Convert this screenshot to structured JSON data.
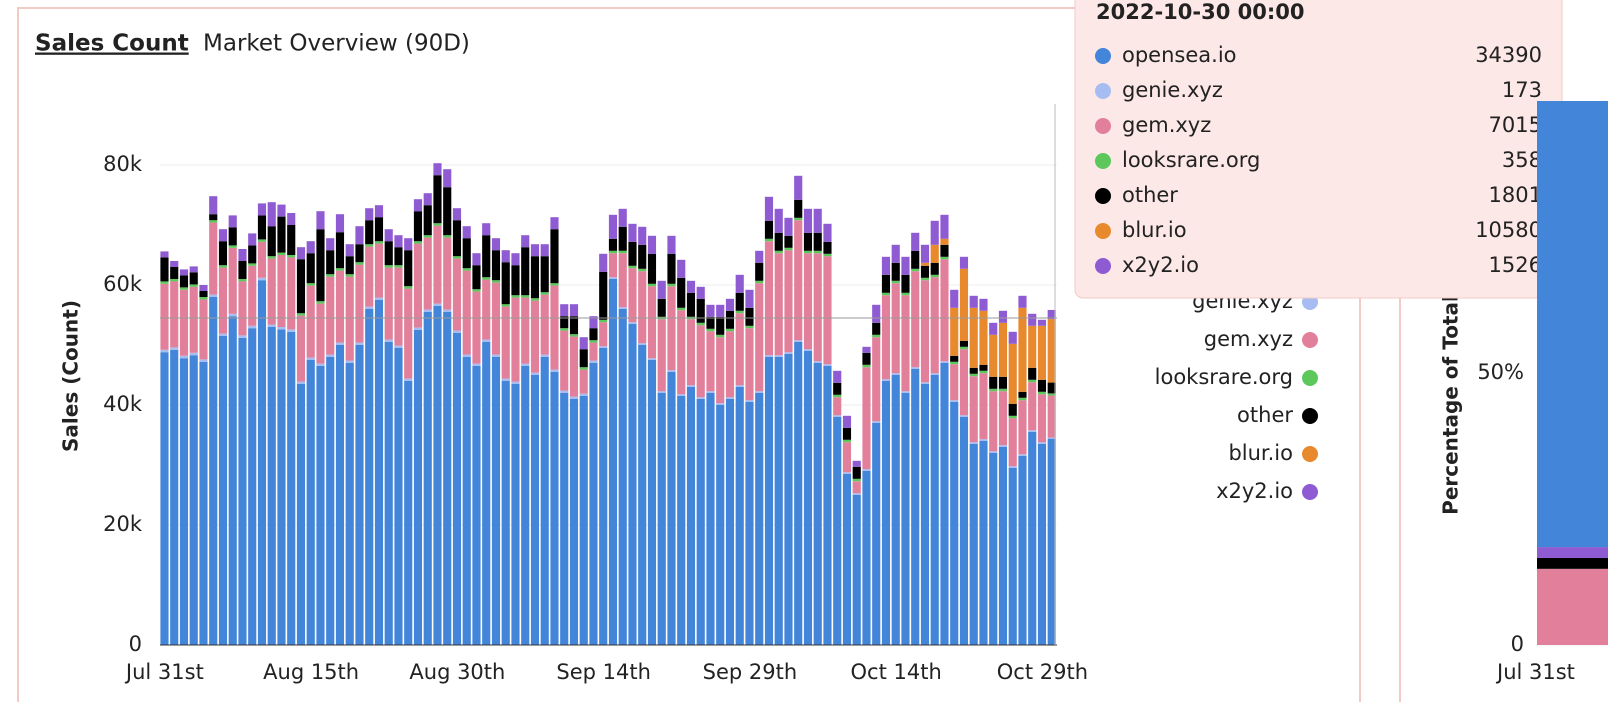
{
  "chart_data": [
    {
      "type": "bar",
      "stacked": true,
      "title": "Sales Count",
      "subtitle": "Market Overview (90D)",
      "y_label": "Sales (Count)",
      "categories": [
        "Jul 31st",
        null,
        null,
        null,
        null,
        null,
        null,
        null,
        null,
        null,
        null,
        null,
        null,
        null,
        null,
        "Aug 15th",
        null,
        null,
        null,
        null,
        null,
        null,
        null,
        null,
        null,
        null,
        null,
        null,
        null,
        null,
        "Aug 30th",
        null,
        null,
        null,
        null,
        null,
        null,
        null,
        null,
        null,
        null,
        null,
        null,
        null,
        null,
        "Sep 14th",
        null,
        null,
        null,
        null,
        null,
        null,
        null,
        null,
        null,
        null,
        null,
        null,
        null,
        null,
        "Sep 29th",
        null,
        null,
        null,
        null,
        null,
        null,
        null,
        null,
        null,
        null,
        null,
        null,
        null,
        null,
        "Oct 14th",
        null,
        null,
        null,
        null,
        null,
        null,
        null,
        null,
        null,
        null,
        null,
        null,
        null,
        null,
        "Oct 29th",
        null
      ],
      "ylim": [
        0,
        91000
      ],
      "yticks": [
        0,
        {
          "value": 20000,
          "label": "20k"
        },
        {
          "value": 40000,
          "label": "40k"
        },
        {
          "value": 60000,
          "label": "60k"
        },
        {
          "value": 80000,
          "label": "80k"
        }
      ],
      "grid": true,
      "tooltip_title": "2022-10-30 00:00",
      "series": [
        {
          "name": "opensea.io",
          "color": "#4285d9",
          "values": [
            48800,
            49200,
            47800,
            48300,
            47200,
            58000,
            51500,
            54800,
            51200,
            52800,
            60800,
            53000,
            52600,
            52200,
            43500,
            47500,
            46500,
            48000,
            50000,
            47000,
            50000,
            56000,
            57500,
            50500,
            49500,
            44000,
            52500,
            55500,
            56500,
            55500,
            52000,
            48000,
            46500,
            50500,
            48000,
            44000,
            43500,
            46500,
            45000,
            48000,
            45500,
            42000,
            41000,
            41500,
            47000,
            49500,
            61000,
            56000,
            53500,
            50000,
            47500,
            42000,
            45500,
            41500,
            43000,
            41000,
            42000,
            40000,
            41000,
            43000,
            40500,
            42000,
            48000,
            48000,
            48500,
            50500,
            49000,
            47000,
            46500,
            38000,
            28500,
            25000,
            29000,
            37000,
            44000,
            45000,
            42000,
            46000,
            43500,
            45000,
            47000,
            40500,
            38000,
            33500,
            34000,
            32000,
            33000,
            29500,
            31500,
            35500,
            33500,
            34390
          ]
        },
        {
          "name": "genie.xyz",
          "color": "#a7bdf2",
          "values": [
            400,
            400,
            400,
            400,
            400,
            400,
            400,
            400,
            400,
            400,
            400,
            400,
            400,
            400,
            400,
            400,
            400,
            400,
            400,
            400,
            400,
            400,
            400,
            400,
            400,
            400,
            400,
            400,
            400,
            400,
            400,
            400,
            400,
            400,
            400,
            400,
            400,
            400,
            400,
            400,
            400,
            400,
            400,
            400,
            400,
            300,
            300,
            300,
            300,
            300,
            300,
            300,
            300,
            300,
            300,
            300,
            300,
            300,
            300,
            300,
            300,
            300,
            300,
            300,
            300,
            300,
            300,
            300,
            300,
            300,
            300,
            300,
            300,
            300,
            300,
            300,
            300,
            300,
            300,
            300,
            300,
            300,
            300,
            300,
            300,
            300,
            300,
            300,
            300,
            300,
            300,
            173
          ]
        },
        {
          "name": "gem.xyz",
          "color": "#e2809c",
          "values": [
            11000,
            11000,
            11000,
            11000,
            10000,
            12000,
            11000,
            11000,
            9000,
            10000,
            6000,
            11000,
            12000,
            12000,
            11000,
            12000,
            10000,
            13000,
            12000,
            14000,
            13000,
            10000,
            9000,
            12000,
            13000,
            15000,
            14000,
            12000,
            13000,
            12000,
            12000,
            14000,
            12000,
            10000,
            12000,
            12000,
            14000,
            11000,
            12000,
            10000,
            14000,
            10000,
            10000,
            4000,
            3000,
            4000,
            4000,
            9000,
            9000,
            12000,
            12000,
            12000,
            14000,
            14000,
            11000,
            12000,
            10000,
            11000,
            11000,
            12000,
            12000,
            18000,
            19000,
            17000,
            17000,
            20000,
            16000,
            18000,
            18000,
            3000,
            5000,
            2000,
            17000,
            14000,
            14000,
            15000,
            16000,
            16000,
            17000,
            16000,
            17000,
            6000,
            11000,
            11000,
            11000,
            10000,
            9000,
            8000,
            9000,
            8000,
            8000,
            7015
          ]
        },
        {
          "name": "looksrare.org",
          "color": "#5cc85c",
          "values": [
            400,
            400,
            400,
            400,
            400,
            400,
            400,
            400,
            400,
            400,
            400,
            400,
            400,
            400,
            400,
            400,
            400,
            400,
            400,
            400,
            400,
            400,
            400,
            400,
            400,
            400,
            400,
            400,
            400,
            400,
            400,
            400,
            400,
            400,
            400,
            400,
            400,
            400,
            400,
            400,
            400,
            400,
            400,
            400,
            400,
            400,
            400,
            400,
            400,
            400,
            400,
            400,
            400,
            400,
            400,
            400,
            400,
            400,
            400,
            400,
            400,
            400,
            400,
            400,
            400,
            400,
            400,
            400,
            400,
            400,
            400,
            400,
            400,
            400,
            400,
            400,
            400,
            400,
            400,
            400,
            400,
            400,
            400,
            400,
            400,
            400,
            400,
            400,
            400,
            400,
            400,
            358
          ]
        },
        {
          "name": "other",
          "color": "#000000",
          "values": [
            4000,
            2000,
            2000,
            2000,
            1000,
            1000,
            4000,
            3000,
            3000,
            3000,
            4000,
            5000,
            6000,
            5000,
            9000,
            5000,
            12000,
            4000,
            6000,
            3000,
            3000,
            4000,
            4000,
            4000,
            3000,
            6000,
            5000,
            5000,
            8000,
            8000,
            6000,
            5000,
            4000,
            7000,
            5000,
            7000,
            5000,
            8000,
            7000,
            6000,
            9000,
            2000,
            3000,
            3000,
            2000,
            8000,
            2000,
            4000,
            4000,
            4000,
            5000,
            3000,
            5000,
            5000,
            4000,
            4000,
            2000,
            3000,
            3000,
            3000,
            3000,
            3000,
            3000,
            3000,
            2000,
            3000,
            3000,
            3000,
            2000,
            2000,
            2000,
            2000,
            2000,
            2000,
            3000,
            3000,
            3000,
            3000,
            2000,
            2000,
            2000,
            1000,
            1000,
            1000,
            1000,
            2000,
            2000,
            2000,
            1000,
            2000,
            2000,
            1801
          ]
        },
        {
          "name": "blur.io",
          "color": "#e8892e",
          "values": [
            0,
            0,
            0,
            0,
            0,
            0,
            0,
            0,
            0,
            0,
            0,
            0,
            0,
            0,
            0,
            0,
            0,
            0,
            0,
            0,
            0,
            0,
            0,
            0,
            0,
            0,
            0,
            0,
            0,
            0,
            0,
            0,
            0,
            0,
            0,
            0,
            0,
            0,
            0,
            0,
            0,
            0,
            0,
            0,
            0,
            0,
            0,
            0,
            0,
            0,
            0,
            0,
            0,
            0,
            0,
            0,
            0,
            0,
            0,
            0,
            0,
            0,
            0,
            0,
            0,
            0,
            0,
            0,
            0,
            0,
            0,
            0,
            0,
            0,
            0,
            0,
            0,
            0,
            500,
            3000,
            1000,
            8000,
            12000,
            10000,
            9000,
            7000,
            9000,
            10000,
            14000,
            7000,
            9000,
            10580
          ]
        },
        {
          "name": "x2y2.io",
          "color": "#8f5bd3",
          "values": [
            1000,
            1000,
            1000,
            1000,
            1000,
            3000,
            2000,
            2000,
            2000,
            2000,
            2000,
            4000,
            2000,
            2000,
            2000,
            2000,
            3000,
            2000,
            3000,
            2000,
            3000,
            2000,
            2000,
            2000,
            2000,
            2000,
            2000,
            2000,
            2000,
            3000,
            2000,
            2000,
            2000,
            2000,
            2000,
            2000,
            2000,
            2000,
            2000,
            2000,
            2000,
            2000,
            2000,
            2000,
            2000,
            3000,
            4000,
            3000,
            3000,
            3000,
            3000,
            3000,
            3000,
            3000,
            2000,
            2000,
            2000,
            2000,
            2000,
            3000,
            3000,
            2000,
            4000,
            4000,
            3000,
            4000,
            4000,
            4000,
            3000,
            2000,
            2000,
            1000,
            1000,
            3000,
            3000,
            3000,
            3000,
            3000,
            3000,
            4000,
            4000,
            3000,
            2000,
            2000,
            2000,
            2000,
            2000,
            2000,
            2000,
            2000,
            1000,
            1526
          ]
        }
      ]
    },
    {
      "type": "area",
      "y_label": "Percentage of Total",
      "categories": [
        "Jul 31st"
      ],
      "ylim": [
        0,
        100
      ],
      "yticks": [
        {
          "value": 0,
          "label": "0"
        },
        {
          "value": 50,
          "label": "50%"
        }
      ],
      "series": [
        {
          "name": "gem.xyz",
          "color": "#e2809c",
          "values": [
            14
          ]
        },
        {
          "name": "other",
          "color": "#000000",
          "values": [
            2
          ]
        },
        {
          "name": "x2y2.io",
          "color": "#8f5bd3",
          "values": [
            2
          ]
        },
        {
          "name": "opensea.io",
          "color": "#4285d9",
          "values": [
            82
          ]
        }
      ]
    }
  ]
}
